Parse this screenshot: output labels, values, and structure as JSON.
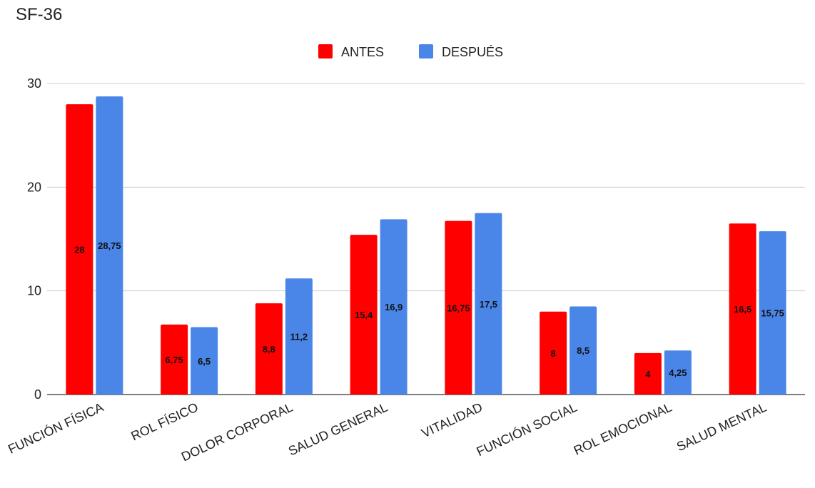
{
  "chart_data": {
    "type": "bar",
    "title": "SF-36",
    "xlabel": "",
    "ylabel": "",
    "ylim": [
      0,
      30
    ],
    "yticks": [
      0,
      10,
      20,
      30
    ],
    "grid": true,
    "legend_position": "top-center",
    "categories": [
      "FUNCIÓN FÍSICA",
      "ROL FÍSICO",
      "DOLOR CORPORAL",
      "SALUD GENERAL",
      "VITALIDAD",
      "FUNCIÓN SOCIAL",
      "ROL EMOCIONAL",
      "SALUD MENTAL"
    ],
    "series": [
      {
        "name": "ANTES",
        "color": "#ff0000",
        "values": [
          28,
          6.75,
          8.8,
          15.4,
          16.75,
          8,
          4,
          16.5
        ],
        "labels": [
          "28",
          "6,75",
          "8,8",
          "15,4",
          "16,75",
          "8",
          "4",
          "16,5"
        ]
      },
      {
        "name": "DESPUÉS",
        "color": "#4a86e8",
        "values": [
          28.75,
          6.5,
          11.2,
          16.9,
          17.5,
          8.5,
          4.25,
          15.75
        ],
        "labels": [
          "28,75",
          "6,5",
          "11,2",
          "16,9",
          "17,5",
          "8,5",
          "4,25",
          "15,75"
        ]
      }
    ]
  }
}
